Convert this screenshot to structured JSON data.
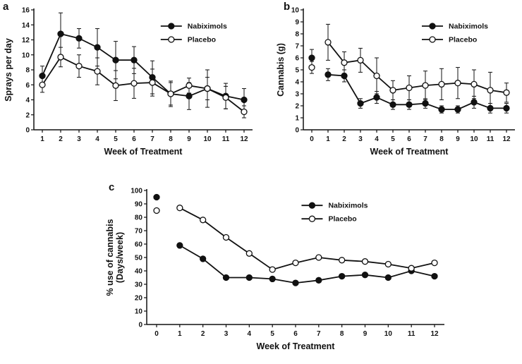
{
  "figure": {
    "description": "Three-panel line chart figure comparing Nabiximols vs Placebo over weeks of treatment"
  },
  "chart_data": [
    {
      "panel_label": "a",
      "type": "line",
      "x": [
        1,
        2,
        3,
        4,
        5,
        6,
        7,
        8,
        9,
        10,
        11,
        12
      ],
      "xlabel": "Week of Treatment",
      "ylabel": [
        "Sprays per day"
      ],
      "ylim": [
        0,
        16
      ],
      "ytick": 2,
      "grid": false,
      "isolated_first_point": false,
      "legend_pos": {
        "x": 0.58,
        "y": 0.1
      },
      "legend_entries": [
        "Nabiximols",
        "Placebo"
      ],
      "series": [
        {
          "name": "Nabiximols",
          "marker": "filled",
          "values": [
            7.2,
            12.8,
            12.2,
            11.0,
            9.3,
            9.3,
            7.0,
            4.8,
            4.5,
            5.5,
            4.5,
            4.0
          ],
          "errors": [
            1.3,
            2.8,
            1.3,
            2.5,
            2.5,
            1.8,
            2.2,
            1.7,
            1.8,
            2.5,
            1.7,
            1.5
          ]
        },
        {
          "name": "Placebo",
          "marker": "open",
          "values": [
            6.0,
            9.7,
            8.5,
            7.8,
            5.9,
            6.2,
            6.3,
            4.8,
            5.9,
            5.5,
            4.3,
            2.4
          ],
          "errors": [
            1.0,
            1.3,
            1.5,
            1.8,
            2.0,
            2.0,
            1.8,
            1.5,
            1.0,
            1.5,
            1.5,
            0.8
          ]
        }
      ]
    },
    {
      "panel_label": "b",
      "type": "line",
      "x": [
        0,
        1,
        2,
        3,
        4,
        5,
        6,
        7,
        8,
        9,
        10,
        11,
        12
      ],
      "xlabel": "Week of Treatment",
      "ylabel": [
        "Cannabis (g)"
      ],
      "ylim": [
        0,
        10
      ],
      "ytick": 1,
      "grid": false,
      "isolated_first_point": true,
      "legend_pos": {
        "x": 0.56,
        "y": 0.1
      },
      "legend_entries": [
        "Nabiximols",
        "Placebo"
      ],
      "series": [
        {
          "name": "Nabiximols",
          "marker": "filled",
          "values": [
            6.0,
            4.6,
            4.5,
            2.2,
            2.7,
            2.1,
            2.1,
            2.2,
            1.7,
            1.7,
            2.3,
            1.8,
            1.8
          ],
          "errors": [
            0.7,
            0.5,
            0.5,
            0.4,
            0.5,
            0.4,
            0.4,
            0.4,
            0.3,
            0.3,
            0.5,
            0.4,
            0.4
          ]
        },
        {
          "name": "Placebo",
          "marker": "open",
          "values": [
            5.2,
            7.3,
            5.6,
            5.8,
            4.5,
            3.3,
            3.5,
            3.7,
            3.8,
            3.9,
            3.8,
            3.3,
            3.1
          ],
          "errors": [
            0.5,
            1.5,
            0.9,
            1.0,
            1.5,
            0.8,
            1.0,
            1.2,
            1.3,
            1.3,
            1.2,
            1.5,
            0.8
          ]
        }
      ]
    },
    {
      "panel_label": "c",
      "type": "line",
      "x": [
        0,
        1,
        2,
        3,
        4,
        5,
        6,
        7,
        8,
        9,
        10,
        11,
        12
      ],
      "xlabel": "Week of Treatment",
      "ylabel": [
        "% use of cannabis",
        "(Days/week)"
      ],
      "ylim": [
        0,
        100
      ],
      "ytick": 10,
      "grid": false,
      "isolated_first_point": true,
      "legend_pos": {
        "x": 0.52,
        "y": 0.08
      },
      "legend_entries": [
        "Nabiximols",
        "Placebo"
      ],
      "series": [
        {
          "name": "Nabiximols",
          "marker": "filled",
          "values": [
            95,
            59,
            49,
            35,
            35,
            34,
            31,
            33,
            36,
            37,
            35,
            40,
            36
          ],
          "errors": null
        },
        {
          "name": "Placebo",
          "marker": "open",
          "values": [
            85,
            87,
            78,
            65,
            53,
            41,
            46,
            50,
            48,
            47,
            45,
            42,
            46
          ],
          "errors": null
        }
      ]
    }
  ]
}
